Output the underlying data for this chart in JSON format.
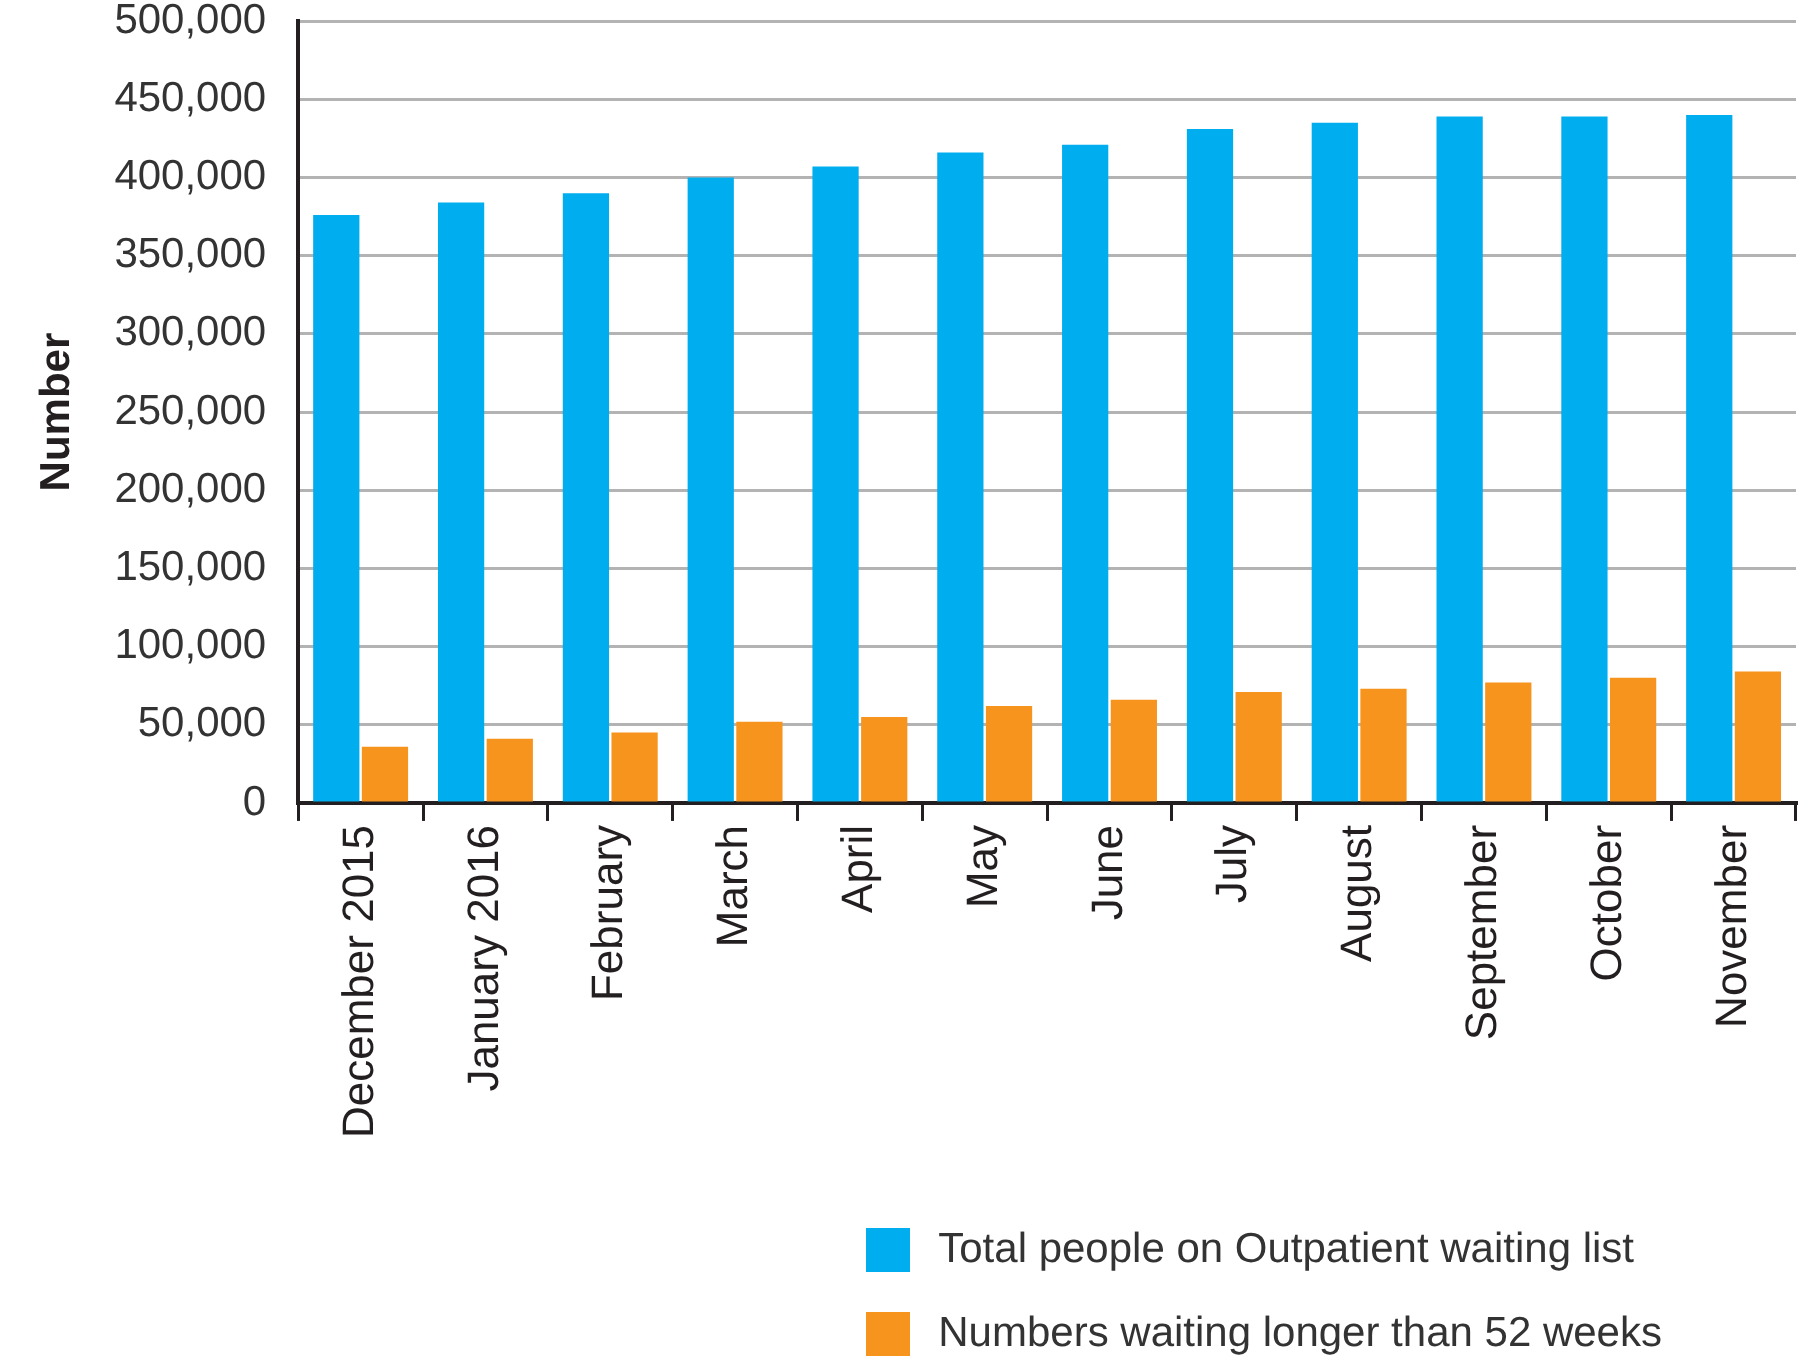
{
  "chart_data": {
    "type": "bar",
    "ylabel": "Number",
    "categories": [
      "December 2015",
      "January 2016",
      "February",
      "March",
      "April",
      "May",
      "June",
      "July",
      "August",
      "September",
      "October",
      "November"
    ],
    "series": [
      {
        "name": "Total people on Outpatient waiting list",
        "color": "#00adef",
        "values": [
          376000,
          384000,
          390000,
          400000,
          407000,
          416000,
          421000,
          431000,
          435000,
          439000,
          439000,
          440000
        ]
      },
      {
        "name": "Numbers waiting longer than 52 weeks",
        "color": "#f7941d",
        "values": [
          36000,
          41000,
          45000,
          52000,
          55000,
          62000,
          66000,
          71000,
          73000,
          77000,
          80000,
          84000
        ]
      }
    ],
    "ylim": [
      0,
      500000
    ],
    "yticks": [
      0,
      {
        "value": 50000,
        "label": "50,000"
      },
      {
        "value": 100000,
        "label": "100,000"
      },
      {
        "value": 150000,
        "label": "150,000"
      },
      {
        "value": 200000,
        "label": "200,000"
      },
      {
        "value": 250000,
        "label": "250,000"
      },
      {
        "value": 300000,
        "label": "300,000"
      },
      {
        "value": 350000,
        "label": "350,000"
      },
      {
        "value": 400000,
        "label": "400,000"
      },
      {
        "value": 450000,
        "label": "450,000"
      },
      {
        "value": 500000,
        "label": "500,000"
      }
    ],
    "grid": "y",
    "legend": "bottom right"
  }
}
